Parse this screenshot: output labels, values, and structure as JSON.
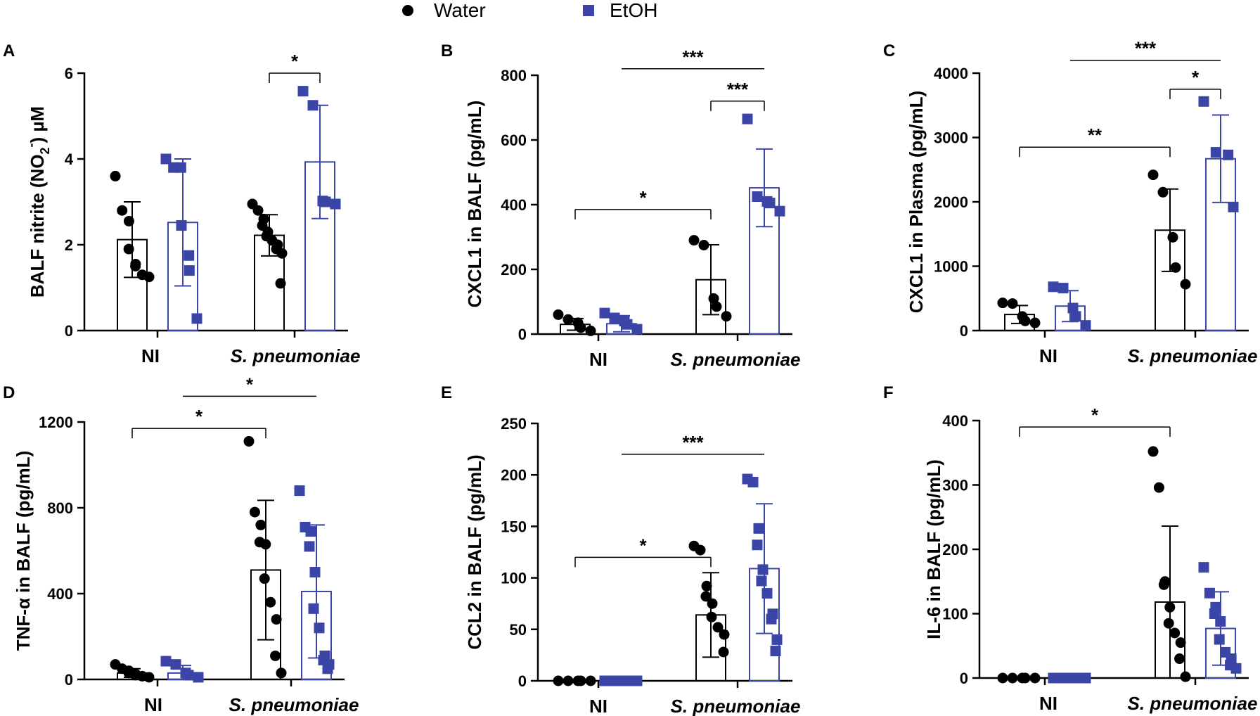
{
  "colors": {
    "water": "#000000",
    "etoh": "#3b45a8"
  },
  "legend": {
    "water_label": "Water",
    "etoh_label": "EtOH"
  },
  "chart_data": [
    {
      "panel": "A",
      "type": "bar",
      "categories": [
        "NI",
        "S. pneumoniae"
      ],
      "ylabel_pre": "BALF nitrite (NO",
      "ylabel_sub": "2",
      "ylabel_sup": "-",
      "ylabel_post": ") µM",
      "yticks": [
        "0",
        "2",
        "4",
        "6"
      ],
      "ylim": [
        0,
        6
      ],
      "series": [
        {
          "name": "Water",
          "means": [
            2.12,
            2.22
          ],
          "sds": [
            0.88,
            0.48
          ],
          "points": [
            [
              3.6,
              2.8,
              2.55,
              1.9,
              1.55,
              1.5,
              1.3,
              1.25
            ],
            [
              2.95,
              2.8,
              2.6,
              2.45,
              2.3,
              2.2,
              2.1,
              2.0,
              1.9,
              1.8,
              1.1
            ]
          ]
        },
        {
          "name": "EtOH",
          "means": [
            2.52,
            3.93
          ],
          "sds": [
            1.48,
            1.32
          ],
          "points": [
            [
              4.0,
              3.8,
              3.8,
              2.45,
              1.75,
              1.4,
              0.28
            ],
            [
              5.58,
              5.25,
              3.02,
              3.0,
              2.95
            ]
          ]
        }
      ],
      "brackets": [
        {
          "from": [
            1,
            0
          ],
          "to": [
            1,
            1
          ],
          "y": 6.0,
          "label": "*",
          "drops": true
        }
      ]
    },
    {
      "panel": "B",
      "type": "bar",
      "categories": [
        "NI",
        "S. pneumoniae"
      ],
      "ylabel": "CXCL1 in BALF (pg/mL)",
      "yticks": [
        "0",
        "200",
        "400",
        "600",
        "800"
      ],
      "ylim": [
        0,
        800
      ],
      "series": [
        {
          "name": "Water",
          "means": [
            30,
            168
          ],
          "sds": [
            18,
            108
          ],
          "points": [
            [
              60,
              45,
              35,
              20,
              10
            ],
            [
              290,
              275,
              110,
              85,
              55
            ]
          ]
        },
        {
          "name": "EtOH",
          "means": [
            32,
            452
          ],
          "sds": [
            25,
            120
          ],
          "points": [
            [
              65,
              50,
              40,
              30,
              15
            ],
            [
              665,
              425,
              410,
              405,
              380
            ]
          ]
        }
      ],
      "brackets": [
        {
          "from": [
            0,
            0
          ],
          "to": [
            1,
            0
          ],
          "y": 385,
          "label": "*",
          "drops": true
        },
        {
          "from": [
            1,
            0
          ],
          "to": [
            1,
            1
          ],
          "y": 720,
          "label": "***",
          "drops": true
        },
        {
          "from": [
            0,
            1
          ],
          "to": [
            1,
            1
          ],
          "y": 820,
          "label": "***",
          "drops": false
        }
      ]
    },
    {
      "panel": "C",
      "type": "bar",
      "categories": [
        "NI",
        "S. pneumoniae"
      ],
      "ylabel": "CXCL1 in Plasma (pg/mL)",
      "yticks": [
        "0",
        "1000",
        "2000",
        "3000",
        "4000"
      ],
      "ylim": [
        0,
        4000
      ],
      "series": [
        {
          "name": "Water",
          "means": [
            250,
            1560
          ],
          "sds": [
            140,
            640
          ],
          "points": [
            [
              430,
              420,
              220,
              150,
              120
            ],
            [
              2420,
              2150,
              1450,
              980,
              720
            ]
          ]
        },
        {
          "name": "EtOH",
          "means": [
            380,
            2670
          ],
          "sds": [
            240,
            680
          ],
          "points": [
            [
              680,
              660,
              350,
              220,
              80
            ],
            [
              3560,
              2770,
              2730,
              1920
            ]
          ]
        }
      ],
      "brackets": [
        {
          "from": [
            0,
            0
          ],
          "to": [
            1,
            0
          ],
          "y": 2850,
          "label": "**",
          "drops": true
        },
        {
          "from": [
            1,
            0
          ],
          "to": [
            1,
            1
          ],
          "y": 3750,
          "label": "*",
          "drops": true
        },
        {
          "from": [
            0,
            1
          ],
          "to": [
            1,
            1
          ],
          "y": 4200,
          "label": "***",
          "drops": false
        }
      ]
    },
    {
      "panel": "D",
      "type": "bar",
      "categories": [
        "NI",
        "S. pneumoniae"
      ],
      "ylabel": "TNF-α in BALF (pg/mL)",
      "yticks": [
        "0",
        "400",
        "800",
        "1200"
      ],
      "ylim": [
        0,
        1200
      ],
      "series": [
        {
          "name": "Water",
          "means": [
            30,
            510
          ],
          "sds": [
            20,
            325
          ],
          "points": [
            [
              70,
              50,
              40,
              30,
              25,
              20,
              15,
              10
            ],
            [
              1110,
              780,
              720,
              640,
              630,
              470,
              360,
              280,
              110,
              30
            ]
          ]
        },
        {
          "name": "EtOH",
          "means": [
            30,
            410
          ],
          "sds": [
            35,
            310
          ],
          "points": [
            [
              85,
              70,
              30,
              20,
              10
            ],
            [
              880,
              710,
              690,
              620,
              500,
              330,
              240,
              110,
              90,
              70,
              50
            ]
          ]
        }
      ],
      "brackets": [
        {
          "from": [
            0,
            0
          ],
          "to": [
            1,
            0
          ],
          "y": 1170,
          "label": "*",
          "drops": true
        },
        {
          "from": [
            0,
            1
          ],
          "to": [
            1,
            1
          ],
          "y": 1320,
          "label": "*",
          "drops": false
        }
      ]
    },
    {
      "panel": "E",
      "type": "bar",
      "categories": [
        "NI",
        "S. pneumoniae"
      ],
      "ylabel": "CCL2 in BALF (pg/mL)",
      "yticks": [
        "0",
        "50",
        "100",
        "150",
        "200",
        "250"
      ],
      "ylim": [
        0,
        250
      ],
      "series": [
        {
          "name": "Water",
          "means": [
            0,
            64
          ],
          "sds": [
            0,
            41
          ],
          "points": [
            [
              0,
              0,
              0,
              0,
              0
            ],
            [
              131,
              127,
              92,
              82,
              75,
              62,
              52,
              45,
              28
            ]
          ]
        },
        {
          "name": "EtOH",
          "means": [
            0,
            109
          ],
          "sds": [
            0,
            63
          ],
          "points": [
            [
              0,
              0,
              0,
              0,
              0
            ],
            [
              196,
              193,
              148,
              132,
              108,
              97,
              85,
              65,
              60,
              40,
              29
            ]
          ]
        }
      ],
      "brackets": [
        {
          "from": [
            0,
            0
          ],
          "to": [
            1,
            0
          ],
          "y": 120,
          "label": "*",
          "drops": true
        },
        {
          "from": [
            0,
            1
          ],
          "to": [
            1,
            1
          ],
          "y": 220,
          "label": "***",
          "drops": false
        }
      ]
    },
    {
      "panel": "F",
      "type": "bar",
      "categories": [
        "NI",
        "S. pneumoniae"
      ],
      "ylabel": "IL-6 in BALF (pg/mL)",
      "yticks": [
        "0",
        "100",
        "200",
        "300",
        "400"
      ],
      "ylim": [
        0,
        400
      ],
      "series": [
        {
          "name": "Water",
          "means": [
            0,
            118
          ],
          "sds": [
            0,
            118
          ],
          "points": [
            [
              0,
              0,
              0,
              0,
              0
            ],
            [
              352,
              296,
              150,
              145,
              110,
              85,
              70,
              55,
              30,
              2
            ]
          ]
        },
        {
          "name": "EtOH",
          "means": [
            0,
            77
          ],
          "sds": [
            0,
            57
          ],
          "points": [
            [
              0,
              0,
              0,
              0,
              0
            ],
            [
              172,
              132,
              110,
              100,
              88,
              60,
              40,
              30,
              20,
              15
            ]
          ]
        }
      ],
      "brackets": [
        {
          "from": [
            0,
            0
          ],
          "to": [
            1,
            0
          ],
          "y": 390,
          "label": "*",
          "drops": true
        }
      ]
    }
  ]
}
